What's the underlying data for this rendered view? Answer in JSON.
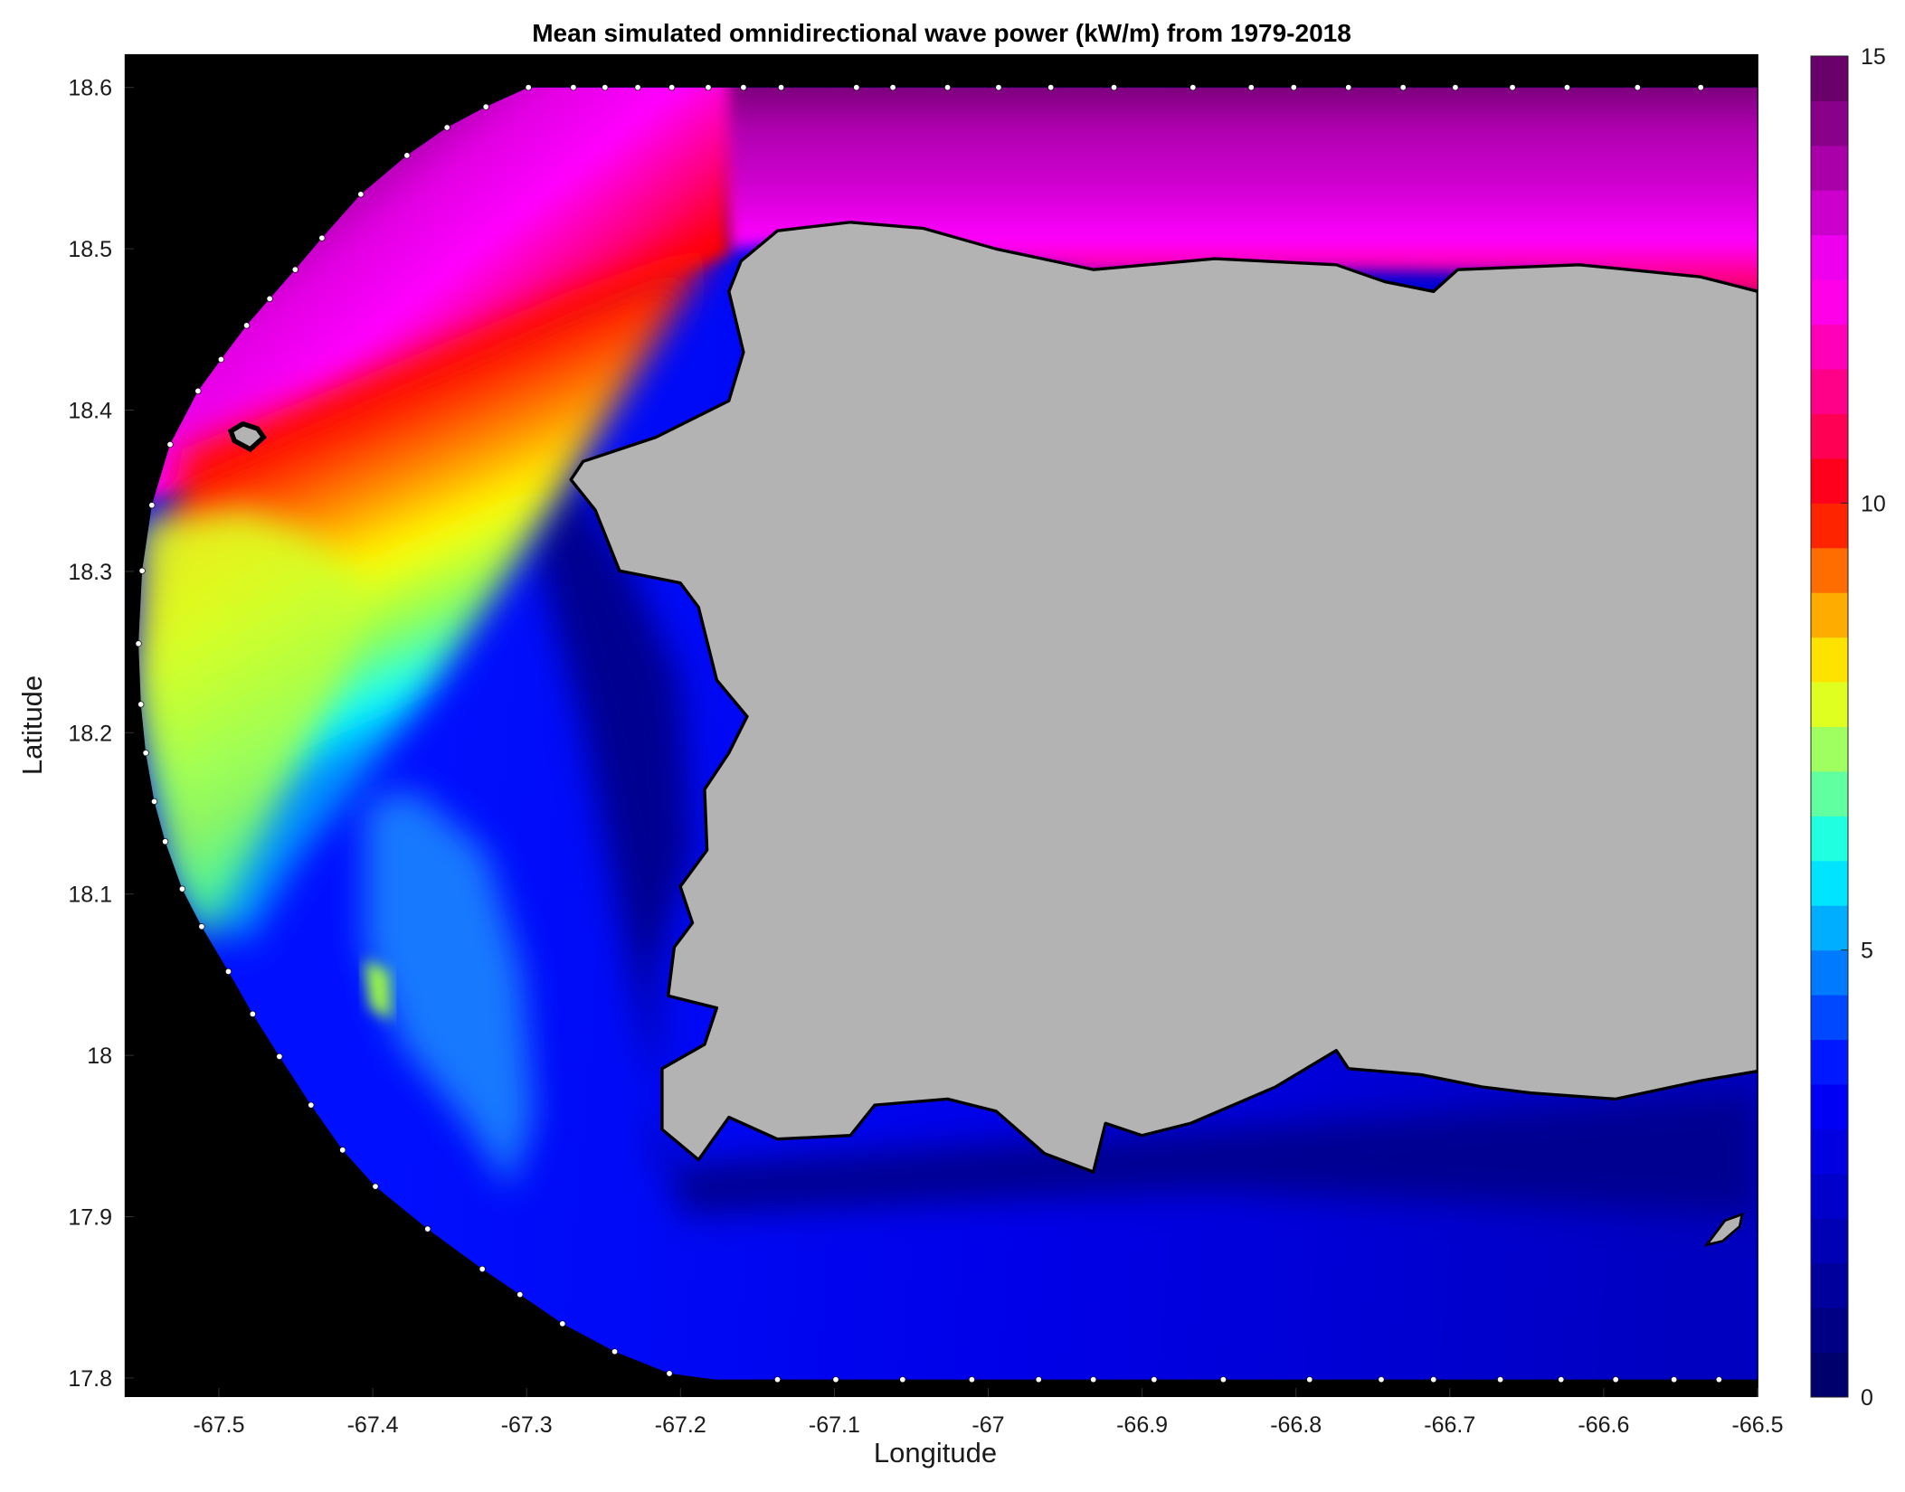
{
  "chart_data": {
    "type": "heatmap",
    "title": "Mean simulated omnidirectional wave power (kW/m) from 1979-2018",
    "xlabel": "Longitude",
    "ylabel": "Latitude",
    "xlim": [
      -67.56,
      -66.5
    ],
    "ylim": [
      17.79,
      18.62
    ],
    "x_ticks": [
      "-67.5",
      "-67.4",
      "-67.3",
      "-67.2",
      "-67.1",
      "-67",
      "-66.9",
      "-66.8",
      "-66.7",
      "-66.6",
      "-66.5"
    ],
    "y_ticks": [
      "17.8",
      "17.9",
      "18",
      "18.1",
      "18.2",
      "18.3",
      "18.4",
      "18.5",
      "18.6"
    ],
    "grid": false,
    "background_color": "#000000",
    "land_color": "#b3b3b3",
    "colorbar": {
      "min": 0,
      "max": 15,
      "levels": 30,
      "ticks": [
        "0",
        "5",
        "10",
        "15"
      ],
      "location": "right",
      "colormap_stops": [
        [
          0,
          "#000060"
        ],
        [
          2,
          "#0000c0"
        ],
        [
          3.5,
          "#0000ff"
        ],
        [
          4.5,
          "#0060ff"
        ],
        [
          5.5,
          "#00c8ff"
        ],
        [
          6,
          "#00ffff"
        ],
        [
          7,
          "#80ff80"
        ],
        [
          8,
          "#ffff00"
        ],
        [
          9,
          "#ff9000"
        ],
        [
          10,
          "#ff0000"
        ],
        [
          11,
          "#ff0070"
        ],
        [
          12,
          "#ff00d0"
        ],
        [
          12.5,
          "#ff00ff"
        ],
        [
          13,
          "#dd00dd"
        ],
        [
          14,
          "#990099"
        ],
        [
          15,
          "#5a005a"
        ]
      ]
    },
    "regions": [
      {
        "name": "north coast",
        "approx_value": 13
      },
      {
        "name": "northwest offshore",
        "approx_value": 10
      },
      {
        "name": "west offshore",
        "approx_value": 7.5
      },
      {
        "name": "south coast",
        "approx_value": 2
      }
    ]
  }
}
